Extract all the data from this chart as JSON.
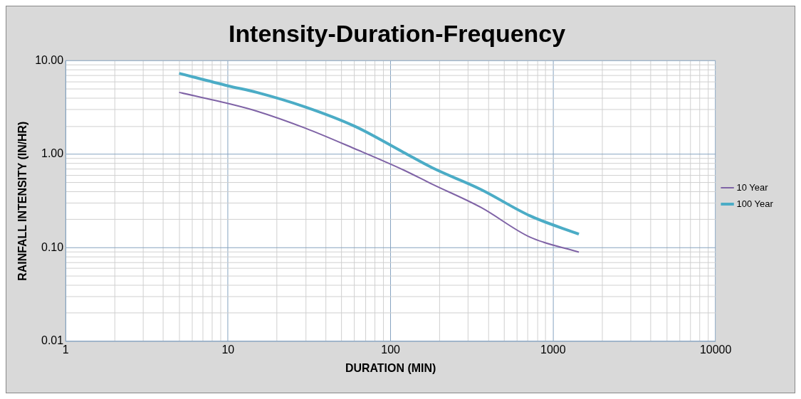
{
  "chart_data": {
    "type": "line",
    "title": "Intensity-Duration-Frequency",
    "xlabel": "DURATION (MIN)",
    "ylabel": "RAINFALL INTENSITY (IN/HR)",
    "log": "xy",
    "grid": true,
    "legend": "right",
    "marker": "none",
    "line_style": "solid",
    "x": [
      5,
      10,
      15,
      30,
      60,
      120,
      180,
      360,
      720,
      1440
    ],
    "xlim": [
      1,
      10000
    ],
    "ylim": [
      0.01,
      10
    ],
    "xticks": [
      1,
      {
        "value": 2,
        "label": null
      },
      {
        "value": 3,
        "label": null
      },
      {
        "value": 4,
        "label": null
      },
      {
        "value": 5,
        "label": null
      },
      {
        "value": 6,
        "label": null
      },
      {
        "value": 7,
        "label": null
      },
      {
        "value": 8,
        "label": null
      },
      {
        "value": 9,
        "label": null
      },
      10,
      {
        "value": 20,
        "label": null
      },
      {
        "value": 30,
        "label": null
      },
      {
        "value": 40,
        "label": null
      },
      {
        "value": 50,
        "label": null
      },
      {
        "value": 60,
        "label": null
      },
      {
        "value": 70,
        "label": null
      },
      {
        "value": 80,
        "label": null
      },
      {
        "value": 90,
        "label": null
      },
      100,
      {
        "value": 200,
        "label": null
      },
      {
        "value": 300,
        "label": null
      },
      {
        "value": 400,
        "label": null
      },
      {
        "value": 500,
        "label": null
      },
      {
        "value": 600,
        "label": null
      },
      {
        "value": 700,
        "label": null
      },
      {
        "value": 800,
        "label": null
      },
      {
        "value": 900,
        "label": null
      },
      1000,
      {
        "value": 2000,
        "label": null
      },
      {
        "value": 3000,
        "label": null
      },
      {
        "value": 4000,
        "label": null
      },
      {
        "value": 5000,
        "label": null
      },
      {
        "value": 6000,
        "label": null
      },
      {
        "value": 7000,
        "label": null
      },
      {
        "value": 8000,
        "label": null
      },
      {
        "value": 9000,
        "label": null
      },
      10000
    ],
    "yticks": [
      {
        "value": 0.01,
        "label": "0.01"
      },
      {
        "value": 0.02,
        "label": null
      },
      {
        "value": 0.03,
        "label": null
      },
      {
        "value": 0.04,
        "label": null
      },
      {
        "value": 0.05,
        "label": null
      },
      {
        "value": 0.06,
        "label": null
      },
      {
        "value": 0.07,
        "label": null
      },
      {
        "value": 0.08,
        "label": null
      },
      {
        "value": 0.09,
        "label": null
      },
      {
        "value": 0.1,
        "label": "0.10"
      },
      {
        "value": 0.2,
        "label": null
      },
      {
        "value": 0.3,
        "label": null
      },
      {
        "value": 0.4,
        "label": null
      },
      {
        "value": 0.5,
        "label": null
      },
      {
        "value": 0.6,
        "label": null
      },
      {
        "value": 0.7,
        "label": null
      },
      {
        "value": 0.8,
        "label": null
      },
      {
        "value": 0.9,
        "label": null
      },
      {
        "value": 1,
        "label": "1.00"
      },
      {
        "value": 2,
        "label": null
      },
      {
        "value": 3,
        "label": null
      },
      {
        "value": 4,
        "label": null
      },
      {
        "value": 5,
        "label": null
      },
      {
        "value": 6,
        "label": null
      },
      {
        "value": 7,
        "label": null
      },
      {
        "value": 8,
        "label": null
      },
      {
        "value": 9,
        "label": null
      },
      {
        "value": 10,
        "label": "10.00"
      }
    ],
    "series": [
      {
        "name": "10 Year",
        "color": "#7f63a6",
        "values": [
          4.6,
          3.5,
          2.9,
          1.9,
          1.15,
          0.68,
          0.48,
          0.27,
          0.13,
          0.09
        ]
      },
      {
        "name": "100 Year",
        "color": "#4bacc6",
        "values": [
          7.35,
          5.4,
          4.6,
          3.2,
          2.0,
          1.05,
          0.72,
          0.42,
          0.22,
          0.14
        ]
      }
    ]
  }
}
